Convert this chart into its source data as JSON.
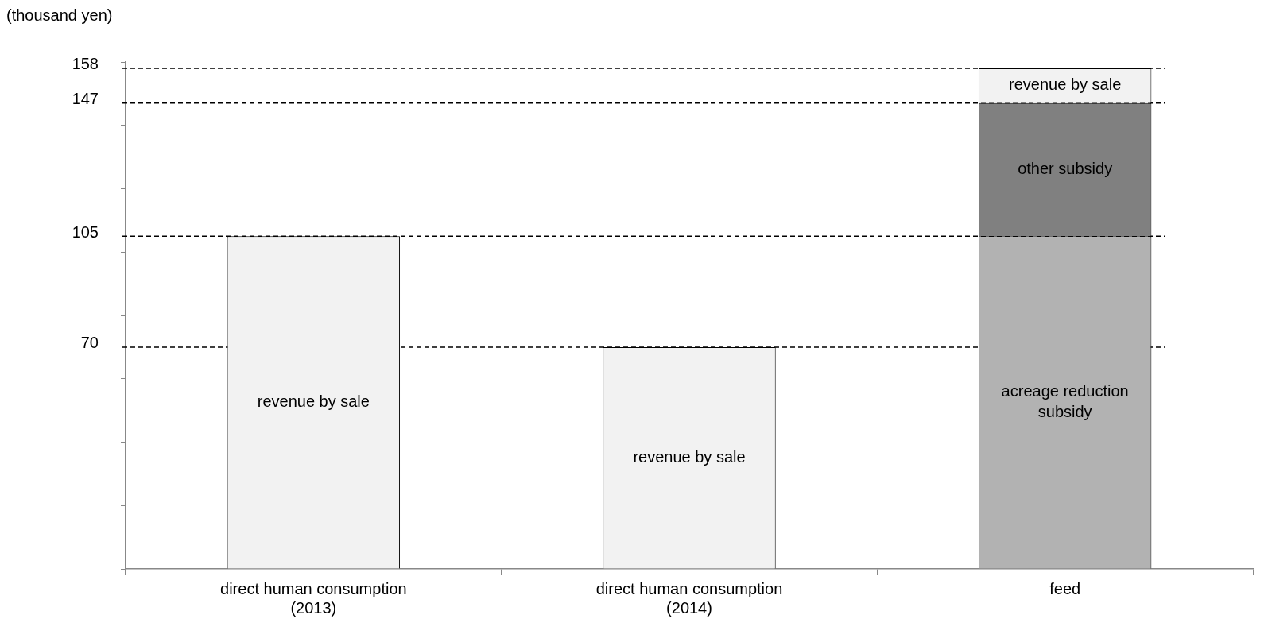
{
  "chart_data": {
    "type": "bar",
    "ylabel": "(thousand yen)",
    "stacked": true,
    "categories": [
      "direct human consumption\n(2013)",
      "direct human consumption\n(2014)",
      "feed"
    ],
    "series": [
      {
        "name": "acreage reduction subsidy",
        "color": "#b2b2b2",
        "values": [
          null,
          null,
          105
        ]
      },
      {
        "name": "other subsidy",
        "color": "#808080",
        "values": [
          null,
          null,
          42
        ]
      },
      {
        "name": "revenue by sale",
        "color": "#f2f2f2",
        "values": [
          105,
          70,
          11
        ]
      }
    ],
    "ylim": [
      0,
      160
    ],
    "yticks": [
      {
        "value": 0,
        "label": null
      },
      {
        "value": 20,
        "label": null
      },
      {
        "value": 40,
        "label": null
      },
      {
        "value": 60,
        "label": null
      },
      {
        "value": 80,
        "label": null
      },
      {
        "value": 100,
        "label": null
      },
      {
        "value": 120,
        "label": null
      },
      {
        "value": 140,
        "label": null
      },
      {
        "value": 160,
        "label": null
      }
    ],
    "ref_lines": [
      {
        "axis": "y",
        "value": 158,
        "label": "158",
        "color": "#000000",
        "line_style": "dashed"
      },
      {
        "axis": "y",
        "value": 147,
        "label": "147",
        "color": "#000000",
        "line_style": "dashed"
      },
      {
        "axis": "y",
        "value": 105,
        "label": "105",
        "color": "#000000",
        "line_style": "dashed"
      },
      {
        "axis": "y",
        "value": 70,
        "label": "70",
        "color": "#000000",
        "line_style": "dashed"
      }
    ],
    "grid": false,
    "legend": false
  }
}
